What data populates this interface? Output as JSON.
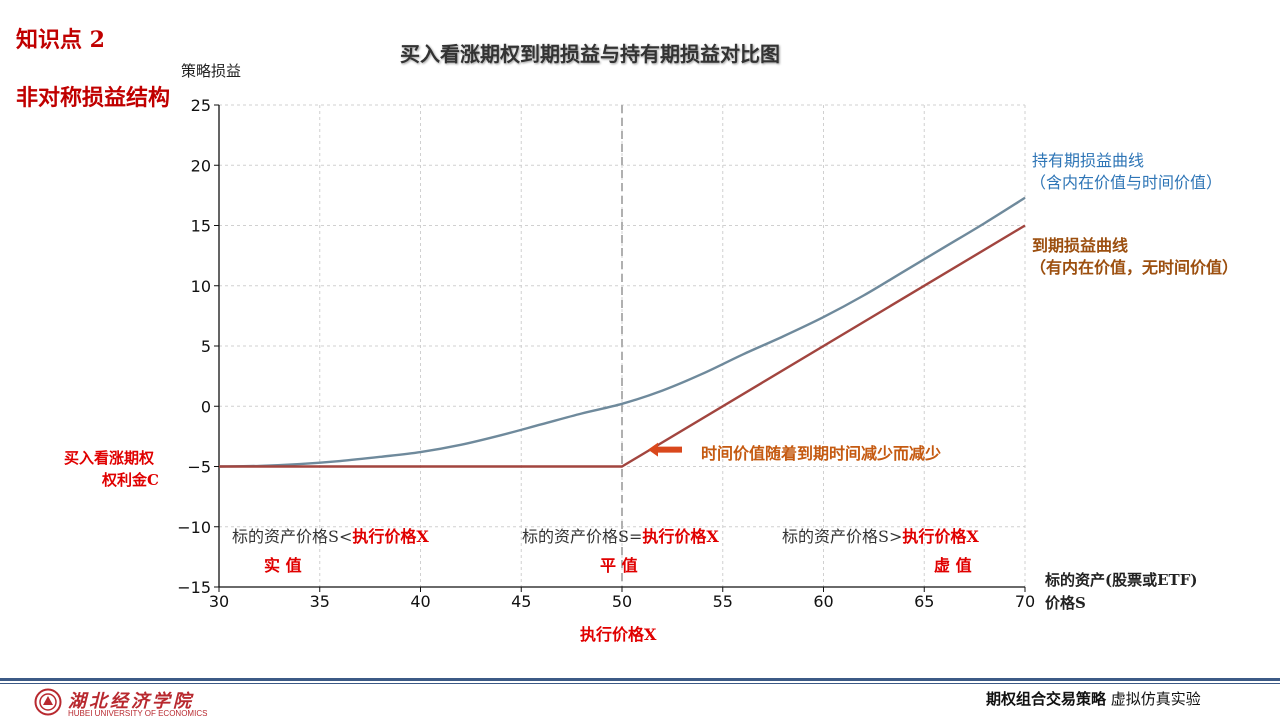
{
  "slide": {
    "topic_number": "知识点 2",
    "topic_title": "非对称损益结构"
  },
  "footer": {
    "logo_text": "湖北经济学院",
    "logo_subtext": "HUBEI UNIVERSITY OF ECONOMICS",
    "course_bold": "期权组合交易策略",
    "course_rest": " 虚拟仿真实验"
  },
  "annotations": {
    "premium_line1": "买入看涨期权",
    "premium_line2": "权利金C",
    "strike_label": "执行价格X",
    "xlabel_line1": "标的资产(股票或ETF)",
    "xlabel_line2": "价格S",
    "time_value_note": "时间价值随着到期时间减少而减少",
    "holding_label_line1": "持有期损益曲线",
    "holding_label_line2": "（含内在价值与时间价值）",
    "expiry_label_line1": "到期损益曲线",
    "expiry_label_line2": "（有内在价值，无时间价值）",
    "itm_cond_plain": "标的资产价格S<",
    "itm_cond_red": "执行价格X",
    "itm_name": "实 值",
    "atm_cond_plain": "标的资产价格S=",
    "atm_cond_red": "执行价格X",
    "atm_name": "平 值",
    "otm_cond_plain": "标的资产价格S>",
    "otm_cond_red": "执行价格X",
    "otm_name": "虚 值"
  },
  "colors": {
    "holding_curve": "#6f8a9c",
    "expiry_curve": "#a2453f",
    "holding_label": "#2e75b6",
    "expiry_label": "#9c4f0f",
    "time_note": "#c55a11",
    "arrow": "#d9481c",
    "red": "#e00000"
  },
  "chart_data": {
    "type": "line",
    "title": "买入看涨期权到期损益与持有期损益对比图",
    "xlabel": "标的资产(股票或ETF)价格S",
    "ylabel": "策略损益",
    "xlim": [
      30,
      70
    ],
    "ylim": [
      -15,
      25
    ],
    "xticks": [
      30,
      35,
      40,
      45,
      50,
      55,
      60,
      65,
      70
    ],
    "yticks": [
      -15,
      -10,
      -5,
      0,
      5,
      10,
      15,
      20,
      25
    ],
    "grid": true,
    "strike": 50,
    "series": [
      {
        "name": "持有期损益曲线",
        "x": [
          30,
          32,
          34,
          36,
          38,
          40,
          42,
          44,
          46,
          48,
          50,
          52,
          54,
          56,
          58,
          60,
          62,
          64,
          66,
          68,
          70
        ],
        "y": [
          -5.0,
          -4.95,
          -4.8,
          -4.55,
          -4.2,
          -3.8,
          -3.2,
          -2.4,
          -1.5,
          -0.6,
          0.2,
          1.3,
          2.7,
          4.3,
          5.8,
          7.4,
          9.2,
          11.2,
          13.2,
          15.2,
          17.3
        ]
      },
      {
        "name": "到期损益曲线",
        "x": [
          30,
          50,
          70
        ],
        "y": [
          -5,
          -5,
          15
        ]
      }
    ]
  }
}
